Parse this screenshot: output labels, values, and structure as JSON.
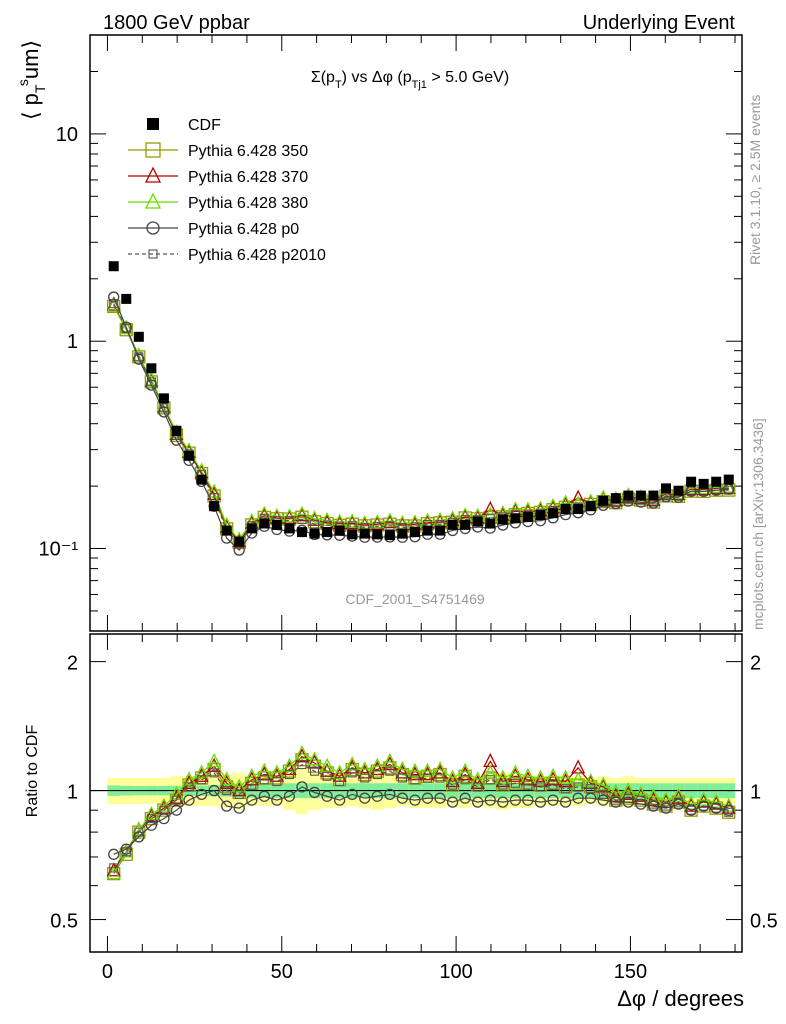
{
  "header": {
    "left": "1800 GeV ppbar",
    "right": "Underlying Event"
  },
  "side_labels": {
    "rivet": "Rivet 3.1.10, ≥ 2.5M events",
    "mcplots": "mcplots.cern.ch [arXiv:1306.3436]"
  },
  "chart_data": {
    "type": "scatter",
    "title": "Σ(p_T) vs Δφ (p_Tj1 > 5.0 GeV)",
    "watermark": "CDF_2001_S4751469",
    "xlabel": "Δφ / degrees",
    "ylabel": "⟨ p_T^sum ⟩",
    "ratio_ylabel": "Ratio to CDF",
    "xlim": [
      -5,
      182
    ],
    "ylim": [
      0.04,
      30
    ],
    "yscale": "log",
    "ratio_ylim": [
      0.42,
      2.32
    ],
    "ratio_yscale": "log",
    "x_ticks": [
      "0",
      "50",
      "100",
      "150"
    ],
    "y_ticks": [
      "10",
      "1",
      "10⁻¹"
    ],
    "ratio_ticks": [
      "0.5",
      "1",
      "2"
    ],
    "legend": "top-left",
    "grid": false,
    "x": [
      1.8,
      5.4,
      9,
      12.6,
      16.2,
      19.8,
      23.4,
      27,
      30.6,
      34.2,
      37.8,
      41.4,
      45,
      48.6,
      52.2,
      55.8,
      59.4,
      63,
      66.6,
      70.2,
      73.8,
      77.4,
      81,
      84.6,
      88.2,
      91.8,
      95.4,
      99,
      102.6,
      106.2,
      109.8,
      113.4,
      117,
      120.6,
      124.2,
      127.8,
      131.4,
      135,
      138.6,
      142.2,
      145.8,
      149.4,
      153,
      156.6,
      160.2,
      163.8,
      167.4,
      171,
      174.6,
      178.2
    ],
    "cdf": [
      2.3,
      1.6,
      1.05,
      0.74,
      0.53,
      0.37,
      0.28,
      0.215,
      0.16,
      0.122,
      0.108,
      0.125,
      0.132,
      0.13,
      0.125,
      0.12,
      0.118,
      0.12,
      0.122,
      0.117,
      0.118,
      0.117,
      0.116,
      0.118,
      0.12,
      0.122,
      0.122,
      0.13,
      0.13,
      0.135,
      0.132,
      0.138,
      0.14,
      0.142,
      0.145,
      0.148,
      0.155,
      0.155,
      0.16,
      0.17,
      0.175,
      0.18,
      0.18,
      0.18,
      0.195,
      0.19,
      0.21,
      0.205,
      0.21,
      0.215
    ],
    "band_stat": [
      0.028,
      0.026,
      0.025,
      0.025,
      0.025,
      0.026,
      0.028,
      0.028,
      0.03,
      0.032,
      0.035,
      0.038,
      0.038,
      0.038,
      0.04,
      0.04,
      0.04,
      0.04,
      0.04,
      0.04,
      0.04,
      0.04,
      0.04,
      0.04,
      0.04,
      0.04,
      0.04,
      0.04,
      0.04,
      0.04,
      0.04,
      0.04,
      0.04,
      0.04,
      0.04,
      0.04,
      0.04,
      0.04,
      0.04,
      0.04,
      0.04,
      0.04,
      0.04,
      0.04,
      0.04,
      0.04,
      0.04,
      0.04,
      0.04,
      0.04
    ],
    "band_tot": [
      0.07,
      0.07,
      0.07,
      0.07,
      0.07,
      0.08,
      0.08,
      0.08,
      0.08,
      0.09,
      0.1,
      0.08,
      0.08,
      0.08,
      0.1,
      0.12,
      0.1,
      0.09,
      0.09,
      0.08,
      0.09,
      0.1,
      0.09,
      0.08,
      0.09,
      0.09,
      0.09,
      0.08,
      0.09,
      0.08,
      0.09,
      0.1,
      0.09,
      0.09,
      0.08,
      0.08,
      0.08,
      0.08,
      0.07,
      0.08,
      0.07,
      0.08,
      0.07,
      0.07,
      0.07,
      0.07,
      0.07,
      0.07,
      0.07,
      0.07
    ],
    "series": [
      {
        "name": "CDF",
        "color": "#000000",
        "marker": "square-filled",
        "line": "none",
        "ratio": [
          1,
          1,
          1,
          1,
          1,
          1,
          1,
          1,
          1,
          1,
          1,
          1,
          1,
          1,
          1,
          1,
          1,
          1,
          1,
          1,
          1,
          1,
          1,
          1,
          1,
          1,
          1,
          1,
          1,
          1,
          1,
          1,
          1,
          1,
          1,
          1,
          1,
          1,
          1,
          1,
          1,
          1,
          1,
          1,
          1,
          1,
          1,
          1,
          1,
          1
        ]
      },
      {
        "name": "Pythia 6.428 350",
        "color": "#999900",
        "marker": "square-open",
        "line": "solid",
        "ratio": [
          0.64,
          0.71,
          0.8,
          0.86,
          0.9,
          0.95,
          1.03,
          1.07,
          1.12,
          1.02,
          0.99,
          1.04,
          1.07,
          1.07,
          1.11,
          1.18,
          1.14,
          1.1,
          1.06,
          1.12,
          1.09,
          1.11,
          1.13,
          1.09,
          1.07,
          1.08,
          1.09,
          1.03,
          1.08,
          1.03,
          1.07,
          1.03,
          1.04,
          1.04,
          1.03,
          1.04,
          1.02,
          1.03,
          1.02,
          0.99,
          0.95,
          0.96,
          0.95,
          0.93,
          0.92,
          0.94,
          0.9,
          0.92,
          0.91,
          0.89
        ]
      },
      {
        "name": "Pythia 6.428 370",
        "color": "#b00000",
        "marker": "triangle-open",
        "line": "solid",
        "ratio": [
          0.65,
          0.72,
          0.81,
          0.87,
          0.91,
          0.96,
          1.04,
          1.08,
          1.14,
          1.04,
          1.0,
          1.06,
          1.09,
          1.08,
          1.12,
          1.2,
          1.16,
          1.11,
          1.08,
          1.13,
          1.1,
          1.12,
          1.15,
          1.1,
          1.09,
          1.09,
          1.1,
          1.05,
          1.09,
          1.04,
          1.17,
          1.05,
          1.08,
          1.06,
          1.05,
          1.06,
          1.05,
          1.13,
          1.04,
          1.02,
          0.97,
          0.98,
          0.97,
          0.95,
          0.94,
          0.96,
          0.92,
          0.94,
          0.93,
          0.91
        ]
      },
      {
        "name": "Pythia 6.428 380",
        "color": "#66dd00",
        "marker": "triangle-open",
        "line": "solid",
        "ratio": [
          0.64,
          0.72,
          0.81,
          0.88,
          0.92,
          0.98,
          1.06,
          1.1,
          1.17,
          1.06,
          1.02,
          1.08,
          1.11,
          1.1,
          1.14,
          1.22,
          1.18,
          1.14,
          1.1,
          1.15,
          1.12,
          1.14,
          1.17,
          1.12,
          1.11,
          1.11,
          1.12,
          1.07,
          1.11,
          1.06,
          1.1,
          1.07,
          1.1,
          1.08,
          1.07,
          1.08,
          1.07,
          1.06,
          1.05,
          1.03,
          0.99,
          1.0,
          0.98,
          0.97,
          0.95,
          0.97,
          0.93,
          0.95,
          0.94,
          0.92
        ]
      },
      {
        "name": "Pythia 6.428 p0",
        "color": "#444444",
        "marker": "circle-open",
        "line": "solid",
        "ratio": [
          0.71,
          0.73,
          0.78,
          0.83,
          0.86,
          0.9,
          0.95,
          0.98,
          1.0,
          0.92,
          0.91,
          0.95,
          0.97,
          0.95,
          0.97,
          1.02,
          0.99,
          0.97,
          0.95,
          0.98,
          0.96,
          0.97,
          0.98,
          0.96,
          0.95,
          0.96,
          0.96,
          0.94,
          0.96,
          0.94,
          0.95,
          0.94,
          0.95,
          0.95,
          0.94,
          0.95,
          0.94,
          0.96,
          0.96,
          0.95,
          0.94,
          0.94,
          0.93,
          0.92,
          0.91,
          0.93,
          0.9,
          0.92,
          0.91,
          0.9
        ]
      },
      {
        "name": "Pythia 6.428 p2010",
        "color": "#555555",
        "marker": "square-small-open",
        "line": "dashed",
        "ratio": [
          0.66,
          0.72,
          0.8,
          0.86,
          0.9,
          0.95,
          1.02,
          1.06,
          1.1,
          1.0,
          0.98,
          1.03,
          1.06,
          1.05,
          1.09,
          1.15,
          1.11,
          1.08,
          1.05,
          1.1,
          1.07,
          1.09,
          1.11,
          1.07,
          1.06,
          1.07,
          1.07,
          1.03,
          1.06,
          1.02,
          1.06,
          1.03,
          1.04,
          1.03,
          1.02,
          1.03,
          1.01,
          1.02,
          1.01,
          0.98,
          0.95,
          0.96,
          0.95,
          0.93,
          0.92,
          0.94,
          0.9,
          0.92,
          0.91,
          0.89
        ]
      }
    ]
  }
}
